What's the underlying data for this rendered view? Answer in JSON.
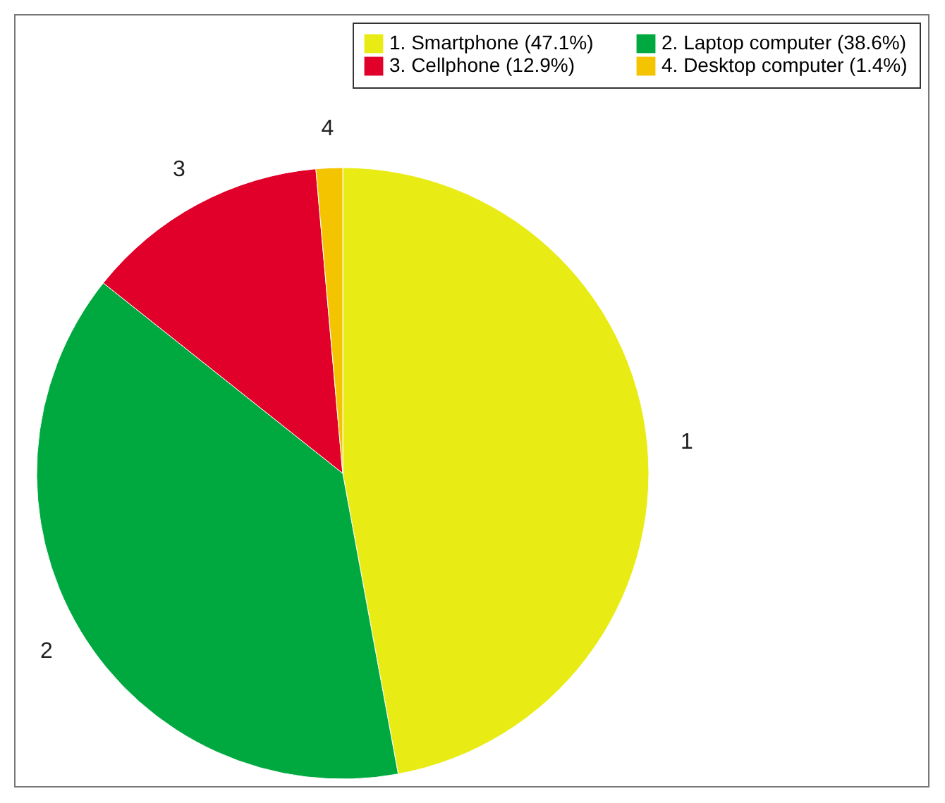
{
  "chart_data": {
    "type": "pie",
    "categories": [
      "1. Smartphone (47.1%)",
      "2. Laptop computer (38.6%)",
      "3. Cellphone (12.9%)",
      "4. Desktop computer (1.4%)"
    ],
    "values": [
      47.1,
      38.6,
      12.9,
      1.4
    ],
    "colors": [
      "#e8ec14",
      "#00a93f",
      "#e0002a",
      "#f5c400"
    ],
    "annotations": [
      {
        "text": "1",
        "x": "1. Smartphone (47.1%)"
      },
      {
        "text": "2",
        "x": "2. Laptop computer (38.6%)"
      },
      {
        "text": "3",
        "x": "3. Cellphone (12.9%)"
      },
      {
        "text": "4",
        "x": "4. Desktop computer (1.4%)"
      }
    ],
    "legend": "top right"
  }
}
